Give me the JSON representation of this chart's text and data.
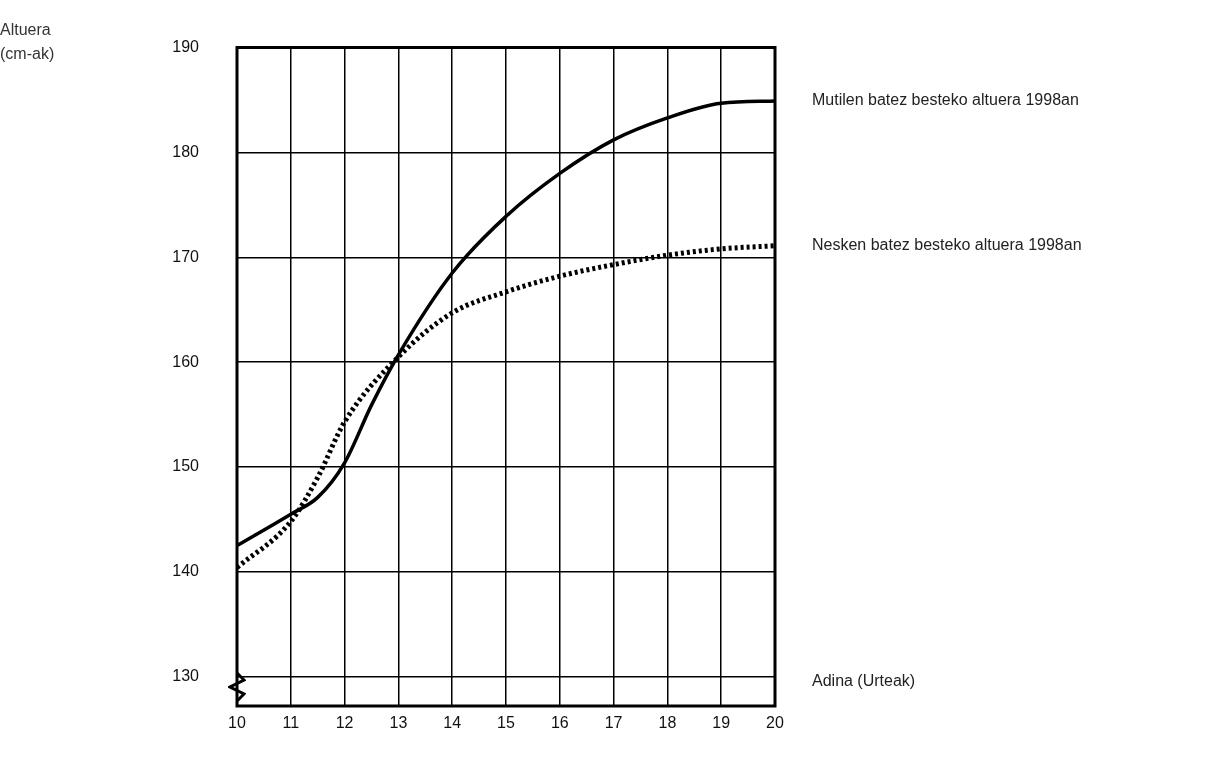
{
  "chart_data": {
    "type": "line",
    "xlabel": "Adina (Urteak)",
    "annotations": [
      "Altuera (cm-ak)"
    ],
    "xlim": [
      10,
      20
    ],
    "xticks": [
      10,
      11,
      12,
      13,
      14,
      15,
      16,
      17,
      18,
      19,
      20
    ],
    "ylim": [
      127.2,
      190
    ],
    "yticks": [
      130,
      140,
      150,
      160,
      170,
      180,
      190
    ],
    "grid": true,
    "legend": false,
    "marker": "none",
    "series": [
      {
        "name": "Mutilen batez besteko altuera 1998an",
        "color": "#000000",
        "line_style": "solid",
        "x": [
          10,
          11,
          11.5,
          12,
          12.5,
          13,
          14,
          15,
          16,
          17,
          18,
          19,
          20
        ],
        "values": [
          142.5,
          145.5,
          147.1,
          150.4,
          155.9,
          160.7,
          168.5,
          173.9,
          178,
          181.2,
          183.3,
          184.7,
          184.9
        ]
      },
      {
        "name": "Nesken batez besteko altuera 1998an",
        "color": "#000000",
        "line_style": "dotted",
        "x": [
          10,
          11,
          11.5,
          12,
          13,
          14,
          15,
          16,
          17,
          18,
          19,
          20
        ],
        "values": [
          140.4,
          144.8,
          149,
          154.3,
          160.5,
          164.7,
          166.7,
          168.2,
          169.3,
          170.2,
          170.8,
          171.1
        ]
      }
    ]
  }
}
